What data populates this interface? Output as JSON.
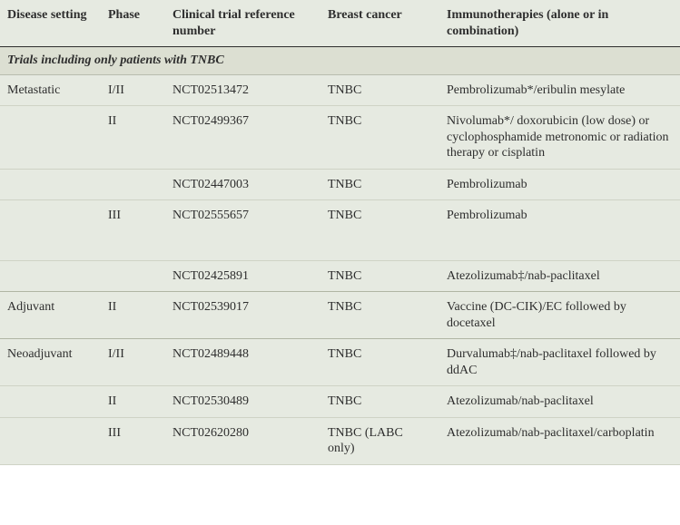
{
  "headers": {
    "disease": "Disease setting",
    "phase": "Phase",
    "ref": "Clinical trial reference number",
    "cancer": "Breast cancer",
    "immuno": "Immunotherapies (alone or in combination)"
  },
  "section_title": "Trials including only patients with TNBC",
  "rows": [
    {
      "disease": "Metastatic",
      "phase": "I/II",
      "ref": "NCT02513472",
      "cancer": "TNBC",
      "immuno": "Pembrolizumab*/eribulin mesylate"
    },
    {
      "disease": "",
      "phase": "II",
      "ref": "NCT02499367",
      "cancer": "TNBC",
      "immuno": "Nivolumab*/ doxorubicin (low dose) or cyclophosphamide metronomic or radiation therapy or cisplatin"
    },
    {
      "disease": "",
      "phase": "",
      "ref": "NCT02447003",
      "cancer": "TNBC",
      "immuno": "Pembrolizumab"
    },
    {
      "disease": "",
      "phase": "III",
      "ref": "NCT02555657",
      "cancer": "TNBC",
      "immuno": "Pembrolizumab"
    },
    {
      "disease": "",
      "phase": "",
      "ref": "NCT02425891",
      "cancer": "TNBC",
      "immuno": "Atezolizumab‡/nab-paclitaxel"
    },
    {
      "disease": "Adjuvant",
      "phase": "II",
      "ref": "NCT02539017",
      "cancer": "TNBC",
      "immuno": "Vaccine (DC-CIK)/EC followed by docetaxel"
    },
    {
      "disease": "Neoadjuvant",
      "phase": "I/II",
      "ref": "NCT02489448",
      "cancer": "TNBC",
      "immuno": "Durvalumab‡/nab-paclitaxel followed by ddAC"
    },
    {
      "disease": "",
      "phase": "II",
      "ref": "NCT02530489",
      "cancer": "TNBC",
      "immuno": "Atezolizumab/nab-paclitaxel"
    },
    {
      "disease": "",
      "phase": "III",
      "ref": "NCT02620280",
      "cancer": "TNBC (LABC only)",
      "immuno": "Atezolizumab/nab-paclitaxel/carboplatin"
    }
  ],
  "row_classes": [
    "",
    "",
    "",
    "tall",
    "last-in-group",
    "last-in-group",
    "",
    "",
    ""
  ]
}
